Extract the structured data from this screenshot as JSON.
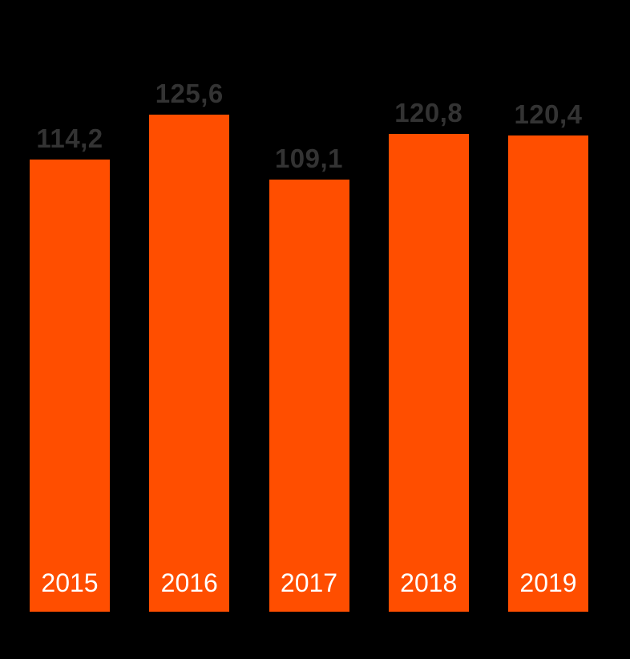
{
  "chart_data": {
    "type": "bar",
    "categories": [
      "2015",
      "2016",
      "2017",
      "2018",
      "2019"
    ],
    "values": [
      114.2,
      125.6,
      109.1,
      120.8,
      120.4
    ],
    "value_labels": [
      "114,2",
      "125,6",
      "109,1",
      "120,8",
      "120,4"
    ],
    "title": "",
    "xlabel": "",
    "ylabel": "",
    "ylim": [
      0,
      140
    ],
    "grid": false,
    "legend": false,
    "axes_visible": false,
    "colors": {
      "background": "#000000",
      "bar": "#FF4E00",
      "value_label": "#333333",
      "category_label": "#FFFFFF"
    }
  }
}
